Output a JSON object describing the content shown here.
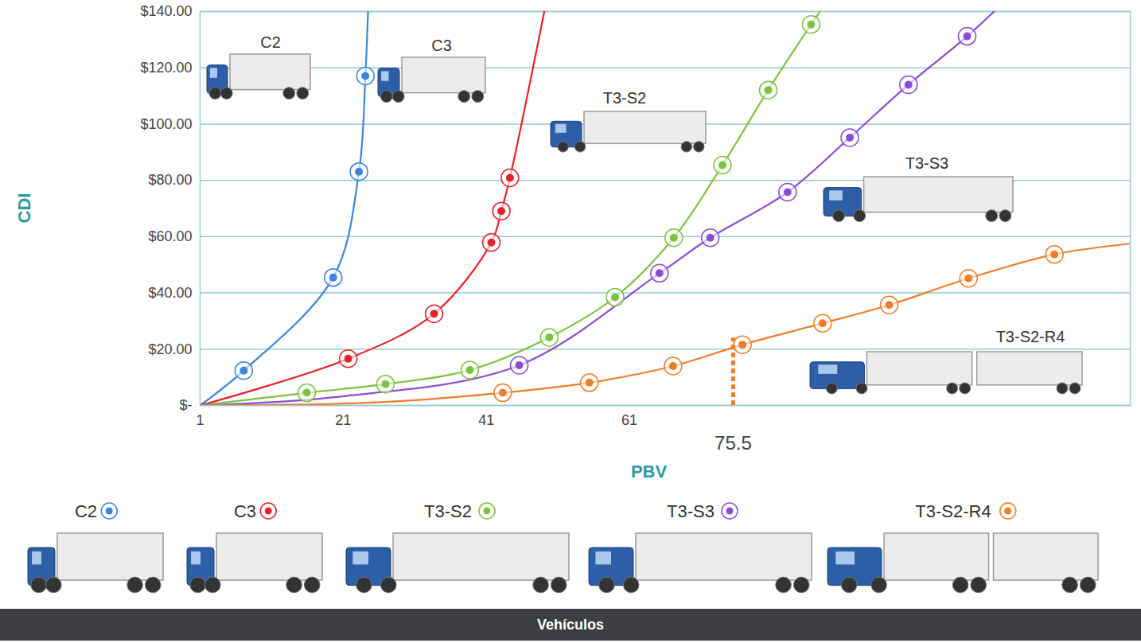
{
  "chart_data": {
    "type": "line",
    "x_label": "PBV",
    "y_label": "CDI",
    "xlim": [
      1,
      131
    ],
    "xticks": [
      1,
      21,
      41,
      61
    ],
    "ylim": [
      0,
      140
    ],
    "yticks": [
      {
        "value": 0,
        "label": "$-"
      },
      {
        "value": 20,
        "label": "$20.00"
      },
      {
        "value": 40,
        "label": "$40.00"
      },
      {
        "value": 60,
        "label": "$60.00"
      },
      {
        "value": 80,
        "label": "$80.00"
      },
      {
        "value": 100,
        "label": "$100.00"
      },
      {
        "value": 120,
        "label": "$120.00"
      },
      {
        "value": 140,
        "label": "$140.00"
      }
    ],
    "grid": true,
    "legend": "bottom",
    "legend_title": "Vehículos",
    "marker": "circle",
    "series": [
      {
        "name": "C2",
        "color": "#3a86d8",
        "x": [
          7.1,
          19.6,
          23.2,
          24.1
        ],
        "values": [
          12.4,
          45.5,
          83.1,
          117.1
        ],
        "line_x": [
          1,
          7.1,
          19.6,
          23.2,
          24.1,
          24.6
        ],
        "line_values": [
          0,
          12.4,
          45.5,
          83.1,
          117.1,
          150
        ]
      },
      {
        "name": "C3",
        "color": "#e8202a",
        "x": [
          21.7,
          33.7,
          41.7,
          43.1,
          44.3
        ],
        "values": [
          16.6,
          32.6,
          57.9,
          69.1,
          80.9
        ],
        "line_x": [
          1,
          21.7,
          33.7,
          41.7,
          43.1,
          44.3,
          49.5
        ],
        "line_values": [
          0,
          16.6,
          32.6,
          57.9,
          69.1,
          80.9,
          145
        ]
      },
      {
        "name": "T3-S2",
        "color": "#7dc242",
        "x": [
          15.9,
          26.9,
          38.7,
          49.8,
          59,
          67.2,
          74,
          80.4,
          86.4
        ],
        "values": [
          4.5,
          7.6,
          12.6,
          24.2,
          38.5,
          59.6,
          85.4,
          112.1,
          135.4
        ],
        "line_x": [
          1,
          15.9,
          26.9,
          38.7,
          49.8,
          59,
          67.2,
          74,
          80.4,
          86.4,
          89
        ],
        "line_values": [
          0,
          4.5,
          7.6,
          12.6,
          24.2,
          38.5,
          59.6,
          85.4,
          112.1,
          135.4,
          145
        ]
      },
      {
        "name": "T3-S3",
        "color": "#8a4fd1",
        "x": [
          45.6,
          65.2,
          72.3,
          83.1,
          91.8,
          100,
          108.2
        ],
        "values": [
          14.3,
          47,
          59.6,
          75.8,
          95.2,
          114,
          131.2
        ],
        "line_x": [
          1,
          20,
          45.6,
          65.2,
          72.3,
          83.1,
          91.8,
          100,
          108.2,
          114
        ],
        "line_values": [
          0,
          3,
          14.3,
          47,
          59.6,
          75.8,
          95.2,
          114,
          131.2,
          145
        ]
      },
      {
        "name": "T3-S2-R4",
        "color": "#f07d2a",
        "x": [
          43.3,
          55.4,
          67.1,
          76.8,
          88,
          97.3,
          108.4,
          120.4
        ],
        "values": [
          4.5,
          8.1,
          14,
          21.6,
          29.2,
          35.7,
          45.2,
          53.7
        ],
        "line_x": [
          1,
          25,
          43.3,
          55.4,
          67.1,
          76.8,
          88,
          97.3,
          108.4,
          120.4,
          131
        ],
        "line_values": [
          0,
          1,
          4.5,
          8.1,
          14,
          21.6,
          29.2,
          35.7,
          45.2,
          53.7,
          57.5
        ]
      }
    ],
    "annotation": {
      "x": 75.5,
      "y": 24,
      "label": "75.5",
      "color": "#f07d2a",
      "line_style": "dashed"
    }
  }
}
